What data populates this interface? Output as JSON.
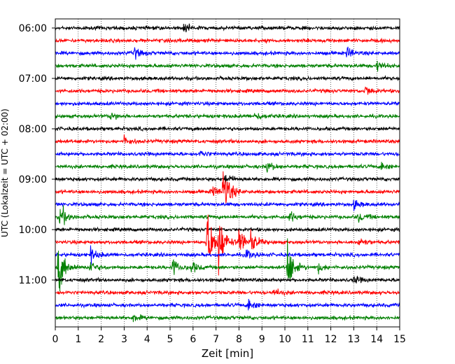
{
  "chart_data": {
    "type": "line",
    "chart_kind": "helicorder",
    "title": "",
    "xlabel": "Zeit  [min]",
    "ylabel": "UTC (Lokalzeit = UTC + 02:00)",
    "xlim": [
      0,
      15
    ],
    "x_ticks": [
      "0",
      "1",
      "2",
      "3",
      "4",
      "5",
      "6",
      "7",
      "8",
      "9",
      "10",
      "11",
      "12",
      "13",
      "14",
      "15"
    ],
    "y_ticks": [
      "06:00",
      "07:00",
      "08:00",
      "09:00",
      "10:00",
      "11:00"
    ],
    "row_minutes": 15,
    "trace_colors": [
      "#000000",
      "#ff0000",
      "#0000ff",
      "#008000"
    ],
    "grid": {
      "vertical": true,
      "style": "dotted"
    },
    "rows": [
      {
        "start": "06:00",
        "events": [
          {
            "t": 5.6,
            "amp": 1.8
          }
        ]
      },
      {
        "start": "06:15",
        "events": []
      },
      {
        "start": "06:30",
        "events": [
          {
            "t": 3.4,
            "amp": 2.4
          },
          {
            "t": 12.7,
            "amp": 2.2
          }
        ]
      },
      {
        "start": "06:45",
        "events": [
          {
            "t": 14.0,
            "amp": 2.0
          }
        ]
      },
      {
        "start": "07:00",
        "events": []
      },
      {
        "start": "07:15",
        "events": [
          {
            "t": 13.5,
            "amp": 2.0
          }
        ]
      },
      {
        "start": "07:30",
        "events": []
      },
      {
        "start": "07:45",
        "events": [
          {
            "t": 2.4,
            "amp": 1.5
          },
          {
            "t": 8.7,
            "amp": 1.8
          }
        ]
      },
      {
        "start": "08:00",
        "events": []
      },
      {
        "start": "08:15",
        "events": [
          {
            "t": 3.0,
            "amp": 1.8
          }
        ]
      },
      {
        "start": "08:30",
        "events": [
          {
            "t": 6.3,
            "amp": 1.3
          }
        ]
      },
      {
        "start": "08:45",
        "events": [
          {
            "t": 9.2,
            "amp": 2.5
          },
          {
            "t": 14.2,
            "amp": 1.6
          }
        ]
      },
      {
        "start": "09:00",
        "events": [
          {
            "t": 7.4,
            "amp": 2.2
          }
        ]
      },
      {
        "start": "09:15",
        "events": [
          {
            "t": 6.8,
            "amp": 2.2
          },
          {
            "t": 7.3,
            "amp": 11.0
          }
        ]
      },
      {
        "start": "09:30",
        "events": [
          {
            "t": 13.0,
            "amp": 1.6
          }
        ]
      },
      {
        "start": "09:45",
        "events": [
          {
            "t": 0.2,
            "amp": 5.0
          },
          {
            "t": 10.2,
            "amp": 2.0
          },
          {
            "t": 13.2,
            "amp": 2.0
          }
        ]
      },
      {
        "start": "10:00",
        "events": []
      },
      {
        "start": "10:15",
        "events": [
          {
            "t": 6.6,
            "amp": 14.0
          },
          {
            "t": 7.1,
            "amp": 11.0
          },
          {
            "t": 8.0,
            "amp": 6.0
          },
          {
            "t": 8.5,
            "amp": 4.0
          },
          {
            "t": 13.2,
            "amp": 2.0
          }
        ]
      },
      {
        "start": "10:30",
        "events": [
          {
            "t": 1.5,
            "amp": 3.0
          },
          {
            "t": 8.3,
            "amp": 2.0
          }
        ]
      },
      {
        "start": "10:45",
        "events": [
          {
            "t": 0.1,
            "amp": 12.0
          },
          {
            "t": 1.5,
            "amp": 2.5
          },
          {
            "t": 5.1,
            "amp": 3.5
          },
          {
            "t": 5.9,
            "amp": 2.5
          },
          {
            "t": 10.1,
            "amp": 10.0
          },
          {
            "t": 11.4,
            "amp": 2.0
          }
        ]
      },
      {
        "start": "11:00",
        "events": [
          {
            "t": 13.0,
            "amp": 1.5
          }
        ]
      },
      {
        "start": "11:15",
        "events": [
          {
            "t": 9.5,
            "amp": 1.5
          }
        ]
      },
      {
        "start": "11:30",
        "events": [
          {
            "t": 8.4,
            "amp": 2.5
          }
        ]
      },
      {
        "start": "11:45",
        "events": [
          {
            "t": 3.4,
            "amp": 1.5
          }
        ]
      }
    ]
  }
}
